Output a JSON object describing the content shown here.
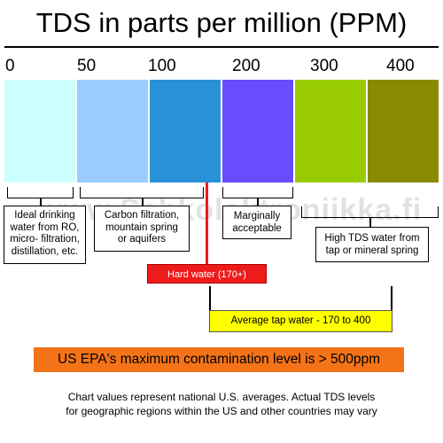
{
  "title": "TDS in parts per million (PPM)",
  "scale_ticks": [
    "0",
    "50",
    "100",
    "200",
    "300",
    "400"
  ],
  "band_colors": [
    "#ccffff",
    "#99ccff",
    "#2a91d8",
    "#6a4cff",
    "#99cc00",
    "#8a8a00"
  ],
  "ranges": {
    "ideal": "Ideal drinking\nwater from RO,\nmicro- filtration,\ndistillation, etc.",
    "carbon": "Carbon filtration,\nmountain spring\nor aquifers",
    "marginal": "Marginally\nacceptable",
    "high": "High TDS water from\ntap or mineral spring"
  },
  "hard_water": "Hard water (170+)",
  "average_tap": "Average tap water - 170 to 400",
  "epa": "US EPA's maximum contamination level is > 500ppm",
  "footnote": "Chart values represent national U.S. averages. Actual TDS levels\nfor geographic regions within the US and other countries may vary",
  "watermark": "www.Sahkolektroniikka.fi",
  "colors": {
    "hard_water": "#ee1b1b",
    "average_tap": "#ffff00",
    "epa": "#f47318"
  }
}
